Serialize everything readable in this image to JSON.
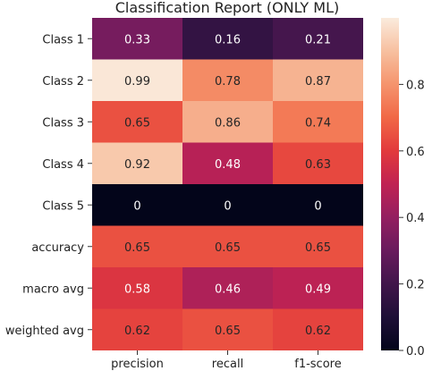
{
  "chart_data": {
    "type": "heatmap",
    "title": "Classification Report (ONLY ML)",
    "columns": [
      "precision",
      "recall",
      "f1-score"
    ],
    "rows": [
      "Class 1",
      "Class 2",
      "Class 3",
      "Class 4",
      "Class 5",
      "accuracy",
      "macro avg",
      "weighted avg"
    ],
    "values": [
      [
        0.33,
        0.16,
        0.21
      ],
      [
        0.99,
        0.78,
        0.87
      ],
      [
        0.65,
        0.86,
        0.74
      ],
      [
        0.92,
        0.48,
        0.63
      ],
      [
        0,
        0,
        0
      ],
      [
        0.65,
        0.65,
        0.65
      ],
      [
        0.58,
        0.46,
        0.49
      ],
      [
        0.62,
        0.65,
        0.62
      ]
    ],
    "colorbar": {
      "range": [
        0,
        1
      ],
      "ticks": [
        "0.0",
        "0.2",
        "0.4",
        "0.6",
        "0.8"
      ],
      "colormap": "rocket"
    }
  }
}
